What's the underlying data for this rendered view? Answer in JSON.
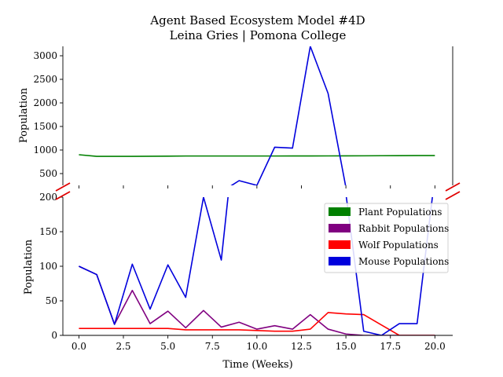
{
  "chart_data": {
    "type": "line",
    "title": "Agent Based Ecosystem Model #4D",
    "subtitle": "Leina Gries | Pomona College",
    "xlabel": "Time (Weeks)",
    "ylabel_top": "Population",
    "ylabel_bottom": "Population",
    "xlim": [
      -0.9,
      21
    ],
    "xticks": [
      0,
      2.5,
      5,
      7.5,
      10,
      12.5,
      15,
      17.5,
      20
    ],
    "xtick_labels": [
      "0.0",
      "2.5",
      "5.0",
      "7.5",
      "10.0",
      "12.5",
      "15.0",
      "17.5",
      "20.0"
    ],
    "broken_axis": true,
    "top_panel": {
      "ylim": [
        250,
        3200
      ],
      "yticks": [
        500,
        1000,
        1500,
        2000,
        2500,
        3000
      ]
    },
    "bottom_panel": {
      "ylim": [
        0,
        200
      ],
      "yticks": [
        0,
        50,
        100,
        150,
        200
      ]
    },
    "legend_placement": "right",
    "x": [
      0,
      1,
      2,
      3,
      4,
      5,
      6,
      7,
      8,
      9,
      10,
      11,
      12,
      13,
      14,
      15,
      16,
      17,
      18,
      19,
      20
    ],
    "series": [
      {
        "name": "Plant Populations",
        "color": "#008000",
        "values": [
          900,
          865,
          865,
          865,
          868,
          870,
          873,
          873,
          873,
          873,
          873,
          873,
          874,
          874,
          875,
          876,
          877,
          879,
          881,
          882,
          883
        ]
      },
      {
        "name": "Rabbit Populations",
        "color": "#800080",
        "values": [
          100,
          88,
          16,
          65,
          17,
          35,
          11,
          36,
          12,
          19,
          9,
          14,
          9,
          30,
          9,
          2,
          0,
          0,
          0,
          0,
          0
        ]
      },
      {
        "name": "Wolf Populations",
        "color": "#ff0000",
        "values": [
          10,
          10,
          10,
          10,
          10,
          10,
          8,
          8,
          8,
          8,
          7,
          6,
          6,
          9,
          33,
          31,
          30,
          15,
          0,
          0,
          0
        ]
      },
      {
        "name": "Mouse Populations",
        "color": "#0000dd",
        "values": [
          100,
          88,
          16,
          103,
          38,
          102,
          55,
          200,
          109,
          350,
          250,
          1060,
          1040,
          3200,
          2200,
          205,
          6,
          0,
          17,
          17,
          230
        ]
      }
    ]
  }
}
